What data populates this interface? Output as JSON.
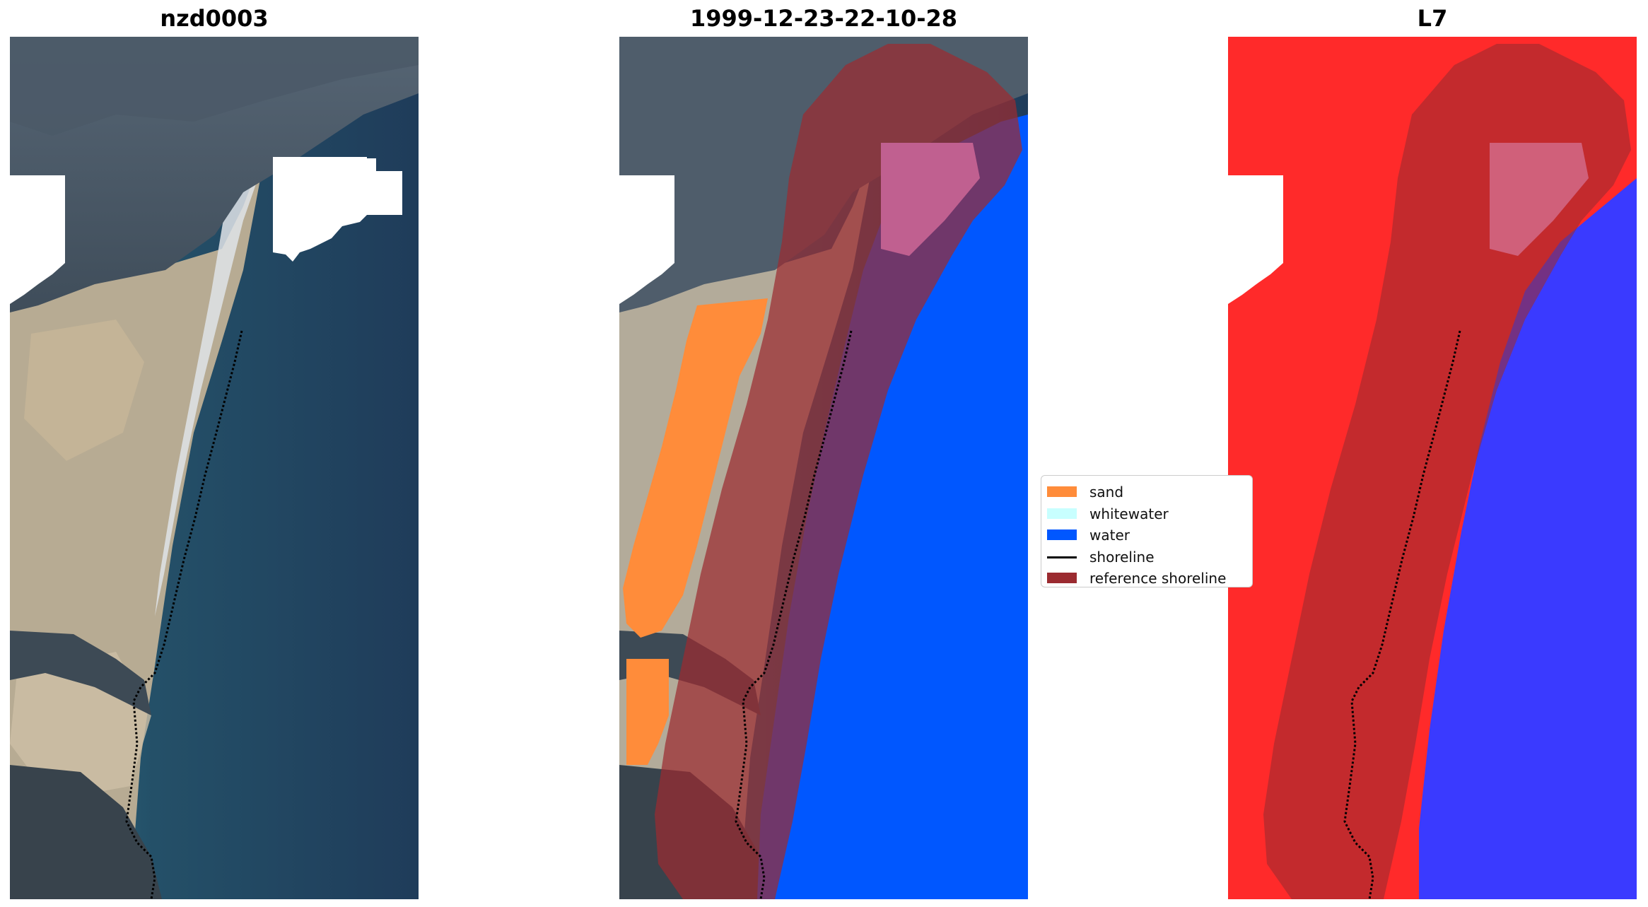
{
  "panels": [
    {
      "title": "nzd0003"
    },
    {
      "title": "1999-12-23-22-10-28"
    },
    {
      "title": "L7"
    }
  ],
  "legend": {
    "items": [
      {
        "label": "sand",
        "color": "#ff8c3a",
        "kind": "patch"
      },
      {
        "label": "whitewater",
        "color": "#c8ffff",
        "kind": "patch"
      },
      {
        "label": "water",
        "color": "#0057ff",
        "kind": "patch"
      },
      {
        "label": "shoreline",
        "color": "#000000",
        "kind": "line"
      },
      {
        "label": "reference shoreline",
        "color": "#9b2b30",
        "kind": "patch"
      }
    ]
  },
  "colors": {
    "sand": "#ff8c3a",
    "water": "#0057ff",
    "reference_shoreline": "#9b2b30",
    "mndwi_land": "#ff2a2a",
    "mndwi_water": "#3a3aff",
    "ocean": "#22405f",
    "land": "#b8ad96"
  }
}
